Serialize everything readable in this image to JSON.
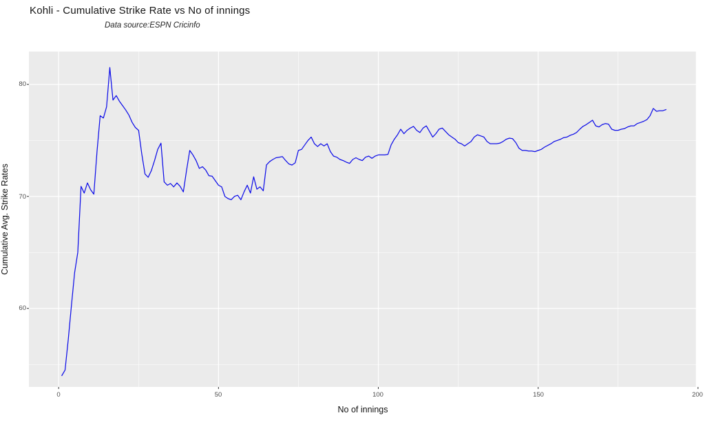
{
  "header": {
    "title": "Kohli - Cumulative Strike Rate vs No of innings",
    "subtitle": "Data source:ESPN Cricinfo"
  },
  "axes": {
    "x_title": "No of innings",
    "y_title": "Cumulative Avg. Strike Rates",
    "x_tick_labels": [
      "0",
      "50",
      "100",
      "150",
      "200"
    ],
    "y_tick_labels": [
      "60",
      "70",
      "80"
    ]
  },
  "colors": {
    "panel_bg": "#EBEBEB",
    "grid_major": "#FFFFFF",
    "grid_minor": "#FFFFFF",
    "line": "#0D0DE8",
    "tick_mark": "#333333",
    "tick_label": "#4D4D4D"
  },
  "chart_data": {
    "type": "line",
    "title": "Kohli - Cumulative Strike Rate vs No of innings",
    "subtitle": "Data source:ESPN Cricinfo",
    "xlabel": "No of innings",
    "ylabel": "Cumulative Avg. Strike Rates",
    "legend_position": "none",
    "grid": true,
    "xlim": [
      -9.3,
      199.6
    ],
    "ylim": [
      52.99,
      82.93
    ],
    "x_major_ticks": [
      0,
      50,
      100,
      150,
      200
    ],
    "x_minor_ticks": [
      25,
      75,
      125,
      175
    ],
    "y_major_ticks": [
      60,
      70,
      80
    ],
    "y_minor_ticks": [
      55,
      65,
      75
    ],
    "series": [
      {
        "name": "cumulative_avg_strike_rate",
        "x_start": 1,
        "x_step": 1,
        "values": [
          54.0,
          54.5,
          57.2,
          60.3,
          63.2,
          65.0,
          70.9,
          70.3,
          71.2,
          70.6,
          70.2,
          74.0,
          77.2,
          77.0,
          78.0,
          81.5,
          78.6,
          79.0,
          78.5,
          78.1,
          77.7,
          77.25,
          76.6,
          76.15,
          75.9,
          73.8,
          72.0,
          71.7,
          72.3,
          73.2,
          74.2,
          74.75,
          71.3,
          71.0,
          71.15,
          70.85,
          71.2,
          70.9,
          70.4,
          72.3,
          74.1,
          73.7,
          73.2,
          72.5,
          72.65,
          72.35,
          71.85,
          71.8,
          71.4,
          71.0,
          70.85,
          70.0,
          69.8,
          69.7,
          70.0,
          70.1,
          69.7,
          70.4,
          71.0,
          70.3,
          71.75,
          70.65,
          70.85,
          70.5,
          72.8,
          73.1,
          73.3,
          73.45,
          73.5,
          73.55,
          73.2,
          72.9,
          72.8,
          73.0,
          74.1,
          74.2,
          74.6,
          75.0,
          75.3,
          74.7,
          74.45,
          74.7,
          74.5,
          74.7,
          74.0,
          73.6,
          73.5,
          73.3,
          73.2,
          73.05,
          72.95,
          73.3,
          73.45,
          73.3,
          73.2,
          73.5,
          73.6,
          73.4,
          73.6,
          73.7,
          73.7,
          73.7,
          73.75,
          74.6,
          75.1,
          75.5,
          76.0,
          75.6,
          75.9,
          76.1,
          76.25,
          75.9,
          75.7,
          76.1,
          76.3,
          75.8,
          75.3,
          75.6,
          76.0,
          76.1,
          75.8,
          75.5,
          75.3,
          75.1,
          74.8,
          74.7,
          74.5,
          74.7,
          74.9,
          75.3,
          75.5,
          75.4,
          75.3,
          74.9,
          74.7,
          74.7,
          74.7,
          74.75,
          74.9,
          75.1,
          75.2,
          75.15,
          74.8,
          74.3,
          74.1,
          74.1,
          74.05,
          74.05,
          74.0,
          74.1,
          74.2,
          74.4,
          74.55,
          74.7,
          74.9,
          75.0,
          75.1,
          75.25,
          75.3,
          75.45,
          75.55,
          75.7,
          76.0,
          76.25,
          76.4,
          76.6,
          76.8,
          76.3,
          76.2,
          76.4,
          76.5,
          76.45,
          76.0,
          75.9,
          75.9,
          76.0,
          76.05,
          76.2,
          76.3,
          76.3,
          76.5,
          76.6,
          76.7,
          76.85,
          77.2,
          77.85,
          77.6,
          77.65,
          77.65,
          77.75
        ]
      }
    ]
  }
}
